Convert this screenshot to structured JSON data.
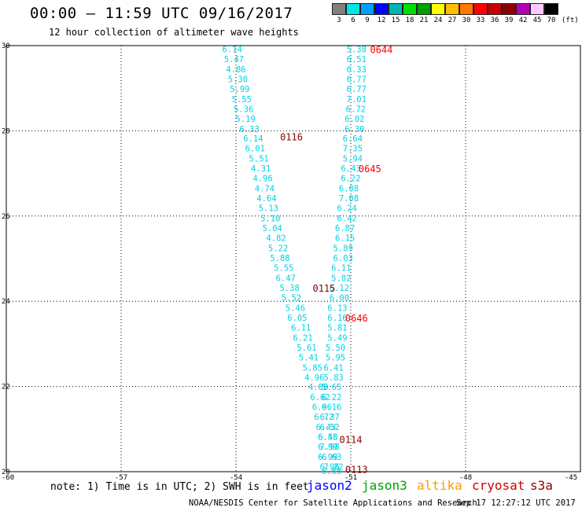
{
  "header": {
    "title": "00:00 – 11:59 UTC 09/16/2017",
    "subtitle": "12 hour collection of altimeter wave heights"
  },
  "legend": {
    "colors": [
      "#808080",
      "#00e5e5",
      "#00a0ff",
      "#0000ff",
      "#00b4b4",
      "#00e000",
      "#00a000",
      "#ffff00",
      "#ffbe00",
      "#ff7800",
      "#ff0000",
      "#c80000",
      "#8c0000",
      "#b400b4",
      "#ffc8ff",
      "#000000"
    ],
    "labels": [
      "3",
      "6",
      "9",
      "12",
      "15",
      "18",
      "21",
      "24",
      "27",
      "30",
      "33",
      "36",
      "39",
      "42",
      "45",
      "70"
    ],
    "unit": "(ft)"
  },
  "chart_data": {
    "type": "scatter",
    "xlim": [
      -60,
      -45
    ],
    "ylim": [
      20,
      30
    ],
    "x_ticks": [
      "-60",
      "-57",
      "-54",
      "-51",
      "-48",
      "-45"
    ],
    "y_ticks": [
      "20",
      "22",
      "24",
      "26",
      "28",
      "30"
    ],
    "grid": true,
    "series": [
      {
        "color": "#00d2e6",
        "points": [
          {
            "x": -54.1,
            "y": 29.9,
            "label": "6.14"
          },
          {
            "x": -54.05,
            "y": 29.67,
            "label": "5.47"
          },
          {
            "x": -54.0,
            "y": 29.43,
            "label": "4.86"
          },
          {
            "x": -53.95,
            "y": 29.2,
            "label": "5.30"
          },
          {
            "x": -53.9,
            "y": 28.97,
            "label": "5.99"
          },
          {
            "x": -53.85,
            "y": 28.73,
            "label": "5.55"
          },
          {
            "x": -53.8,
            "y": 28.5,
            "label": "5.36"
          },
          {
            "x": -53.75,
            "y": 28.27,
            "label": "5.19"
          },
          {
            "x": -53.65,
            "y": 28.03,
            "label": "6.33"
          },
          {
            "x": -53.55,
            "y": 27.8,
            "label": "6.14"
          },
          {
            "x": -53.5,
            "y": 27.57,
            "label": "6.01"
          },
          {
            "x": -53.4,
            "y": 27.33,
            "label": "5.51"
          },
          {
            "x": -53.35,
            "y": 27.1,
            "label": "4.31"
          },
          {
            "x": -53.3,
            "y": 26.87,
            "label": "4.96"
          },
          {
            "x": -53.25,
            "y": 26.63,
            "label": "4.74"
          },
          {
            "x": -53.2,
            "y": 26.4,
            "label": "4.64"
          },
          {
            "x": -53.15,
            "y": 26.17,
            "label": "5.13"
          },
          {
            "x": -53.1,
            "y": 25.93,
            "label": "5.10"
          },
          {
            "x": -53.05,
            "y": 25.7,
            "label": "5.04"
          },
          {
            "x": -52.95,
            "y": 25.47,
            "label": "4.82"
          },
          {
            "x": -52.9,
            "y": 25.23,
            "label": "5.22"
          },
          {
            "x": -52.85,
            "y": 25.0,
            "label": "5.88"
          },
          {
            "x": -52.75,
            "y": 24.77,
            "label": "5.55"
          },
          {
            "x": -52.7,
            "y": 24.53,
            "label": "6.47"
          },
          {
            "x": -52.6,
            "y": 24.3,
            "label": "5.38"
          },
          {
            "x": -52.55,
            "y": 24.07,
            "label": "5.52"
          },
          {
            "x": -52.45,
            "y": 23.83,
            "label": "5.46"
          },
          {
            "x": -52.4,
            "y": 23.6,
            "label": "6.05"
          },
          {
            "x": -52.3,
            "y": 23.37,
            "label": "6.11"
          },
          {
            "x": -52.25,
            "y": 23.13,
            "label": "6.21"
          },
          {
            "x": -52.15,
            "y": 22.9,
            "label": "5.61"
          },
          {
            "x": -52.1,
            "y": 22.67,
            "label": "5.41"
          },
          {
            "x": -52.0,
            "y": 22.43,
            "label": "5.85"
          },
          {
            "x": -51.95,
            "y": 22.2,
            "label": "4.96"
          },
          {
            "x": -51.85,
            "y": 21.97,
            "label": "4.88"
          },
          {
            "x": -51.8,
            "y": 21.73,
            "label": "6.62"
          },
          {
            "x": -51.75,
            "y": 21.5,
            "label": "6.96"
          },
          {
            "x": -51.7,
            "y": 21.27,
            "label": "6.72"
          },
          {
            "x": -51.65,
            "y": 21.03,
            "label": "6.43"
          },
          {
            "x": -51.6,
            "y": 20.8,
            "label": "6.58"
          },
          {
            "x": -51.55,
            "y": 20.57,
            "label": "7.98"
          },
          {
            "x": -51.5,
            "y": 20.33,
            "label": "6.63"
          },
          {
            "x": -51.45,
            "y": 20.1,
            "label": "7.22"
          },
          {
            "x": -50.85,
            "y": 29.9,
            "label": "5.38"
          },
          {
            "x": -50.85,
            "y": 29.67,
            "label": "6.51"
          },
          {
            "x": -50.85,
            "y": 29.43,
            "label": "6.33"
          },
          {
            "x": -50.85,
            "y": 29.2,
            "label": "6.77"
          },
          {
            "x": -50.85,
            "y": 28.97,
            "label": "6.77"
          },
          {
            "x": -50.85,
            "y": 28.73,
            "label": "7.01"
          },
          {
            "x": -50.87,
            "y": 28.5,
            "label": "6.72"
          },
          {
            "x": -50.9,
            "y": 28.27,
            "label": "6.02"
          },
          {
            "x": -50.9,
            "y": 28.03,
            "label": "6.30"
          },
          {
            "x": -50.95,
            "y": 27.8,
            "label": "6.64"
          },
          {
            "x": -50.95,
            "y": 27.57,
            "label": "7.35"
          },
          {
            "x": -50.95,
            "y": 27.33,
            "label": "5.94"
          },
          {
            "x": -51.0,
            "y": 27.1,
            "label": "6.43"
          },
          {
            "x": -51.0,
            "y": 26.87,
            "label": "6.22"
          },
          {
            "x": -51.05,
            "y": 26.63,
            "label": "6.08"
          },
          {
            "x": -51.05,
            "y": 26.4,
            "label": "7.08"
          },
          {
            "x": -51.1,
            "y": 26.17,
            "label": "6.24"
          },
          {
            "x": -51.1,
            "y": 25.93,
            "label": "6.42"
          },
          {
            "x": -51.15,
            "y": 25.7,
            "label": "6.87"
          },
          {
            "x": -51.15,
            "y": 25.47,
            "label": "6.15"
          },
          {
            "x": -51.2,
            "y": 25.23,
            "label": "5.89"
          },
          {
            "x": -51.2,
            "y": 25.0,
            "label": "6.03"
          },
          {
            "x": -51.25,
            "y": 24.77,
            "label": "6.11"
          },
          {
            "x": -51.25,
            "y": 24.53,
            "label": "5.82"
          },
          {
            "x": -51.3,
            "y": 24.3,
            "label": "6.12"
          },
          {
            "x": -51.3,
            "y": 24.07,
            "label": "6.00"
          },
          {
            "x": -51.35,
            "y": 23.83,
            "label": "6.13"
          },
          {
            "x": -51.35,
            "y": 23.6,
            "label": "6.16"
          },
          {
            "x": -51.35,
            "y": 23.37,
            "label": "5.81"
          },
          {
            "x": -51.35,
            "y": 23.13,
            "label": "5.49"
          },
          {
            "x": -51.4,
            "y": 22.9,
            "label": "5.50"
          },
          {
            "x": -51.4,
            "y": 22.67,
            "label": "5.95"
          },
          {
            "x": -51.45,
            "y": 22.43,
            "label": "6.41"
          },
          {
            "x": -51.45,
            "y": 22.2,
            "label": "5.83"
          },
          {
            "x": -51.5,
            "y": 21.97,
            "label": "5.65"
          },
          {
            "x": -51.5,
            "y": 21.73,
            "label": "6.22"
          },
          {
            "x": -51.5,
            "y": 21.5,
            "label": "6.16"
          },
          {
            "x": -51.55,
            "y": 21.27,
            "label": "6.37"
          },
          {
            "x": -51.55,
            "y": 21.03,
            "label": "6.52"
          },
          {
            "x": -51.6,
            "y": 20.8,
            "label": "6.45"
          },
          {
            "x": -51.6,
            "y": 20.57,
            "label": "6.99"
          },
          {
            "x": -51.6,
            "y": 20.33,
            "label": "6.99"
          },
          {
            "x": -51.55,
            "y": 20.1,
            "label": "6.96"
          },
          {
            "x": -51.5,
            "y": 20.0,
            "label": "6.55"
          }
        ]
      }
    ],
    "annotations": [
      {
        "x": -50.2,
        "y": 29.9,
        "label": "0644",
        "color": "#ff0000"
      },
      {
        "x": -52.55,
        "y": 27.85,
        "label": "0116",
        "color": "#8c0000"
      },
      {
        "x": -50.5,
        "y": 27.1,
        "label": "0645",
        "color": "#ff0000"
      },
      {
        "x": -51.7,
        "y": 24.3,
        "label": "0115",
        "color": "#8c0000"
      },
      {
        "x": -50.85,
        "y": 23.6,
        "label": "0646",
        "color": "#ff0000"
      },
      {
        "x": -51.0,
        "y": 20.75,
        "label": "0114",
        "color": "#8c0000"
      },
      {
        "x": -50.85,
        "y": 20.05,
        "label": "0113",
        "color": "#8c0000"
      }
    ]
  },
  "footer": {
    "note": "note: 1) Time is in UTC; 2) SWH is in feet",
    "satellites": [
      {
        "label": "jason2",
        "color": "#0000ff"
      },
      {
        "label": "jason3",
        "color": "#00a000"
      },
      {
        "label": "altika",
        "color": "#ff9900"
      },
      {
        "label": "cryosat",
        "color": "#d00000"
      },
      {
        "label": "s3a",
        "color": "#8c0000"
      }
    ],
    "credit": "NOAA/NESDIS Center for Satellite Applications and Research",
    "timestamp": "Sep 17 12:27:12 UTC 2017"
  }
}
